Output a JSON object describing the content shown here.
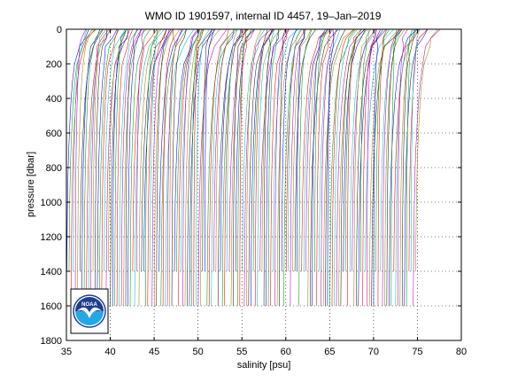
{
  "chart_data": {
    "type": "line",
    "title": "WMO ID 1901597, internal ID 4457, 19–Jan–2019",
    "xlabel": "salinity [psu]",
    "ylabel": "pressure [dbar]",
    "xlim": [
      35,
      80
    ],
    "ylim": [
      0,
      1800
    ],
    "y_reversed": true,
    "grid": true,
    "x_ticks": [
      35,
      40,
      45,
      50,
      55,
      60,
      65,
      70,
      75,
      80
    ],
    "y_ticks": [
      0,
      200,
      400,
      600,
      800,
      1000,
      1200,
      1400,
      1600,
      1800
    ],
    "x_tick_labels": [
      "35",
      "40",
      "45",
      "50",
      "55",
      "60",
      "65",
      "70",
      "75",
      "80"
    ],
    "y_tick_labels": [
      "0",
      "200",
      "400",
      "600",
      "800",
      "1000",
      "1200",
      "1400",
      "1600",
      "1800"
    ],
    "profile_count": 160,
    "first_profile_offset": 35.0,
    "profile_spacing": 0.25,
    "offset_note": "each successive profile is shifted right by 0.25 psu",
    "series_colors": [
      "#0000ff",
      "#00a000",
      "#ff0000",
      "#00bfbf",
      "#bf00bf",
      "#8c8c00",
      "#202020"
    ],
    "representative_profile": {
      "pressure": [
        0,
        50,
        100,
        200,
        300,
        400,
        500,
        600,
        700,
        800,
        1000,
        1200,
        1400,
        1600,
        1800
      ],
      "salinity_anomaly": [
        1.6,
        1.2,
        0.9,
        0.6,
        0.45,
        0.35,
        0.28,
        0.22,
        0.17,
        0.13,
        0.08,
        0.05,
        0.03,
        0.01,
        0.0
      ]
    }
  },
  "logo": {
    "text": "NOAA",
    "colors": {
      "ring": "#ffffff",
      "upper": "#1e3f8f",
      "lower": "#23a8e6",
      "bird": "#ffffff"
    }
  }
}
